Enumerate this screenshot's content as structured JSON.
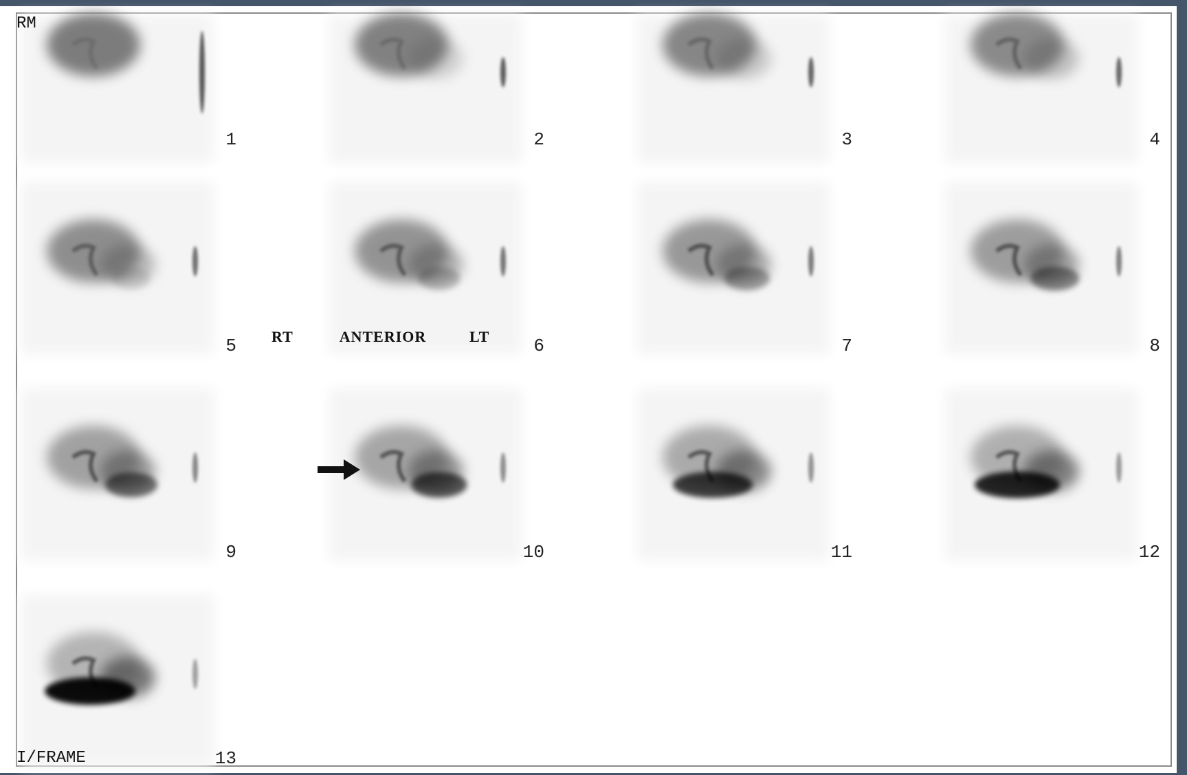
{
  "corner_labels": {
    "top_left": "RM",
    "bottom_left": "I/FRAME"
  },
  "orientation": {
    "right": "RT",
    "view": "ANTERIOR",
    "left": "LT"
  },
  "frames": [
    {
      "label": "1"
    },
    {
      "label": "2"
    },
    {
      "label": "3"
    },
    {
      "label": "4"
    },
    {
      "label": "5"
    },
    {
      "label": "6"
    },
    {
      "label": "7"
    },
    {
      "label": "8"
    },
    {
      "label": "9"
    },
    {
      "label": "10"
    },
    {
      "label": "11"
    },
    {
      "label": "12"
    },
    {
      "label": "13"
    }
  ]
}
